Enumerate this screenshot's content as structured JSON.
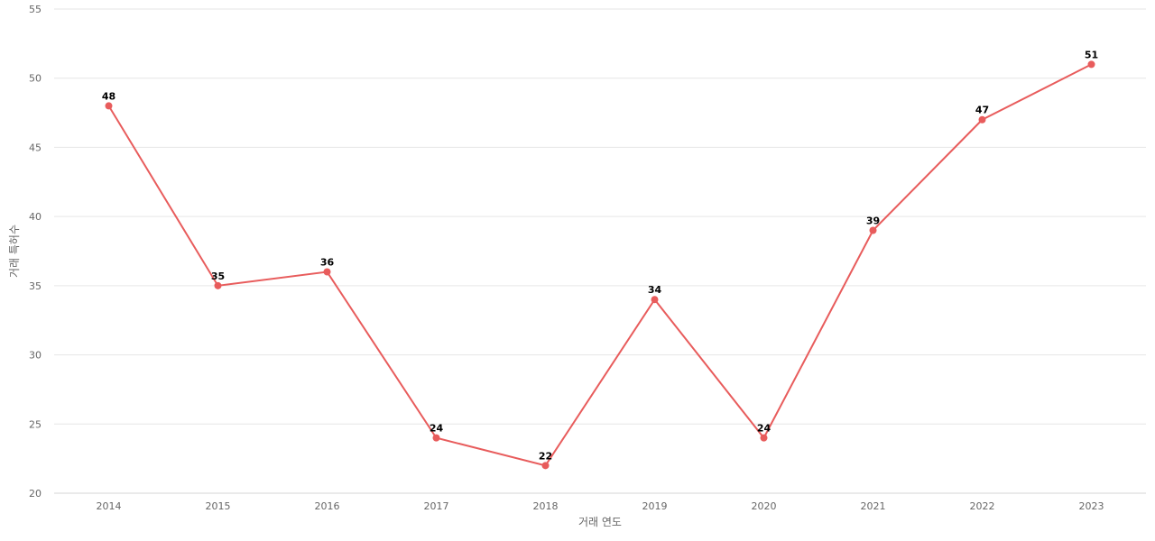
{
  "chart_data": {
    "type": "line",
    "title": "",
    "xlabel": "거래 연도",
    "ylabel": "거래 특허수",
    "categories": [
      "2014",
      "2015",
      "2016",
      "2017",
      "2018",
      "2019",
      "2020",
      "2021",
      "2022",
      "2023"
    ],
    "series": [
      {
        "name": "",
        "values": [
          48,
          35,
          36,
          24,
          22,
          34,
          24,
          39,
          47,
          51
        ]
      }
    ],
    "ylim": [
      20,
      55
    ],
    "yticks": [
      20,
      25,
      30,
      35,
      40,
      45,
      50,
      55
    ],
    "grid": true,
    "legend": "none",
    "data_labels": true,
    "colors": {
      "line": "#e85c5c",
      "point": "#e85c5c"
    }
  }
}
